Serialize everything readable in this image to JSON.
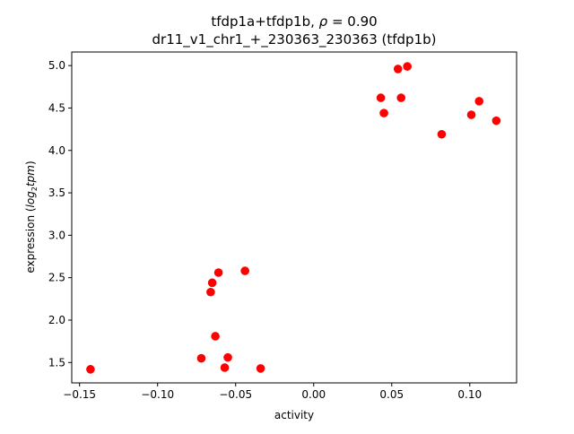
{
  "chart_data": {
    "type": "scatter",
    "title_line1_prefix": "tfdp1a+tfdp1b, ",
    "title_rho_symbol": "ρ",
    "title_line1_suffix": " = 0.90",
    "title_line2": "dr11_v1_chr1_+_230363_230363 (tfdp1b)",
    "xlabel": "activity",
    "ylabel_prefix": "expression (",
    "ylabel_log": "log",
    "ylabel_sub": "2",
    "ylabel_tpm": "tpm",
    "ylabel_suffix": ")",
    "xlim": [
      -0.155,
      0.13
    ],
    "ylim": [
      1.26,
      5.16
    ],
    "x_ticks": [
      -0.15,
      -0.1,
      -0.05,
      0.0,
      0.05,
      0.1
    ],
    "x_tick_labels": [
      "−0.15",
      "−0.10",
      "−0.05",
      "0.00",
      "0.05",
      "0.10"
    ],
    "y_ticks": [
      1.5,
      2.0,
      2.5,
      3.0,
      3.5,
      4.0,
      4.5,
      5.0
    ],
    "y_tick_labels": [
      "1.5",
      "2.0",
      "2.5",
      "3.0",
      "3.5",
      "4.0",
      "4.5",
      "5.0"
    ],
    "grid": false,
    "marker_color": "#ff0000",
    "points": [
      {
        "x": -0.143,
        "y": 1.42
      },
      {
        "x": -0.072,
        "y": 1.55
      },
      {
        "x": -0.066,
        "y": 2.33
      },
      {
        "x": -0.065,
        "y": 2.44
      },
      {
        "x": -0.063,
        "y": 1.81
      },
      {
        "x": -0.061,
        "y": 2.56
      },
      {
        "x": -0.055,
        "y": 1.56
      },
      {
        "x": -0.057,
        "y": 1.44
      },
      {
        "x": -0.044,
        "y": 2.58
      },
      {
        "x": -0.034,
        "y": 1.43
      },
      {
        "x": 0.043,
        "y": 4.62
      },
      {
        "x": 0.045,
        "y": 4.44
      },
      {
        "x": 0.054,
        "y": 4.96
      },
      {
        "x": 0.056,
        "y": 4.62
      },
      {
        "x": 0.06,
        "y": 4.99
      },
      {
        "x": 0.082,
        "y": 4.19
      },
      {
        "x": 0.101,
        "y": 4.42
      },
      {
        "x": 0.106,
        "y": 4.58
      },
      {
        "x": 0.117,
        "y": 4.35
      }
    ]
  }
}
